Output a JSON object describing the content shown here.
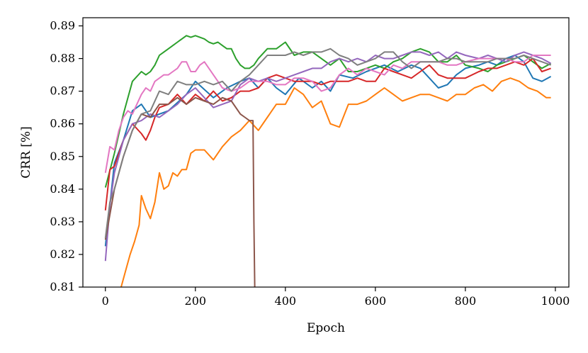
{
  "chart_data": {
    "type": "line",
    "xlabel": "Epoch",
    "ylabel": "CRR [%]",
    "xlim": [
      -50,
      1030
    ],
    "ylim": [
      0.81,
      0.8925
    ],
    "xticks": [
      0,
      200,
      400,
      600,
      800,
      1000
    ],
    "yticks": [
      0.81,
      0.82,
      0.83,
      0.84,
      0.85,
      0.86,
      0.87,
      0.88,
      0.89
    ],
    "ytick_labels": [
      "0.81",
      "0.82",
      "0.83",
      "0.84",
      "0.85",
      "0.86",
      "0.87",
      "0.88",
      "0.89"
    ],
    "xtick_labels": [
      "0",
      "200",
      "400",
      "600",
      "800",
      "1000"
    ],
    "grid": false,
    "legend": "none",
    "series": [
      {
        "color": "#1f77b4",
        "x": [
          0,
          20,
          40,
          60,
          80,
          100,
          140,
          180,
          200,
          240,
          270,
          300,
          320,
          340,
          360,
          380,
          400,
          430,
          460,
          480,
          500,
          520,
          550,
          580,
          600,
          620,
          650,
          680,
          700,
          720,
          740,
          760,
          780,
          800,
          830,
          850,
          870,
          890,
          910,
          930,
          950,
          970,
          990
        ],
        "y": [
          0.8225,
          0.848,
          0.855,
          0.864,
          0.866,
          0.862,
          0.864,
          0.869,
          0.873,
          0.868,
          0.871,
          0.873,
          0.874,
          0.871,
          0.874,
          0.871,
          0.869,
          0.874,
          0.871,
          0.873,
          0.87,
          0.875,
          0.874,
          0.876,
          0.877,
          0.878,
          0.876,
          0.878,
          0.877,
          0.874,
          0.871,
          0.872,
          0.875,
          0.877,
          0.878,
          0.879,
          0.878,
          0.88,
          0.881,
          0.879,
          0.874,
          0.873,
          0.8745
        ]
      },
      {
        "color": "#ff7f0e",
        "x": [
          35,
          45,
          55,
          65,
          75,
          80,
          90,
          100,
          110,
          120,
          130,
          140,
          150,
          160,
          170,
          180,
          190,
          200,
          220,
          240,
          260,
          280,
          300,
          320,
          340,
          360,
          380,
          400,
          420,
          440,
          460,
          480,
          500,
          520,
          540,
          560,
          580,
          600,
          620,
          640,
          660,
          680,
          700,
          720,
          740,
          760,
          780,
          800,
          820,
          840,
          860,
          880,
          900,
          920,
          940,
          960,
          980,
          990
        ],
        "y": [
          0.81,
          0.815,
          0.82,
          0.824,
          0.829,
          0.838,
          0.834,
          0.831,
          0.836,
          0.845,
          0.84,
          0.841,
          0.845,
          0.844,
          0.846,
          0.846,
          0.851,
          0.852,
          0.852,
          0.849,
          0.853,
          0.856,
          0.858,
          0.861,
          0.858,
          0.862,
          0.866,
          0.866,
          0.871,
          0.869,
          0.865,
          0.867,
          0.86,
          0.859,
          0.866,
          0.866,
          0.867,
          0.869,
          0.871,
          0.869,
          0.867,
          0.868,
          0.869,
          0.869,
          0.868,
          0.867,
          0.869,
          0.869,
          0.871,
          0.872,
          0.87,
          0.873,
          0.874,
          0.873,
          0.871,
          0.87,
          0.868,
          0.868
        ]
      },
      {
        "color": "#2ca02c",
        "x": [
          0,
          20,
          40,
          60,
          80,
          90,
          100,
          110,
          120,
          130,
          140,
          150,
          160,
          170,
          180,
          190,
          200,
          210,
          220,
          230,
          240,
          250,
          260,
          270,
          280,
          290,
          300,
          310,
          320,
          330,
          340,
          360,
          380,
          400,
          420,
          440,
          460,
          480,
          500,
          520,
          540,
          560,
          580,
          600,
          620,
          640,
          660,
          680,
          700,
          720,
          740,
          760,
          780,
          800,
          830,
          850,
          870,
          890,
          910,
          930,
          950,
          970,
          990
        ],
        "y": [
          0.8405,
          0.851,
          0.863,
          0.873,
          0.876,
          0.875,
          0.876,
          0.878,
          0.881,
          0.882,
          0.883,
          0.884,
          0.885,
          0.886,
          0.887,
          0.8865,
          0.887,
          0.8865,
          0.886,
          0.885,
          0.8845,
          0.885,
          0.884,
          0.883,
          0.883,
          0.88,
          0.878,
          0.877,
          0.877,
          0.878,
          0.88,
          0.883,
          0.883,
          0.885,
          0.881,
          0.882,
          0.882,
          0.88,
          0.878,
          0.88,
          0.876,
          0.876,
          0.877,
          0.878,
          0.877,
          0.879,
          0.88,
          0.882,
          0.883,
          0.882,
          0.879,
          0.879,
          0.881,
          0.878,
          0.877,
          0.876,
          0.878,
          0.879,
          0.88,
          0.881,
          0.879,
          0.877,
          0.8785
        ]
      },
      {
        "color": "#d62728",
        "x": [
          0,
          10,
          20,
          40,
          60,
          80,
          90,
          100,
          110,
          120,
          140,
          160,
          180,
          200,
          220,
          240,
          260,
          280,
          300,
          320,
          340,
          360,
          380,
          400,
          420,
          440,
          460,
          480,
          500,
          520,
          540,
          560,
          580,
          600,
          620,
          640,
          660,
          680,
          700,
          720,
          740,
          760,
          780,
          800,
          830,
          850,
          870,
          890,
          910,
          930,
          950,
          970,
          990
        ],
        "y": [
          0.8335,
          0.846,
          0.847,
          0.855,
          0.86,
          0.857,
          0.855,
          0.858,
          0.862,
          0.865,
          0.866,
          0.869,
          0.866,
          0.869,
          0.867,
          0.87,
          0.867,
          0.868,
          0.87,
          0.87,
          0.871,
          0.874,
          0.875,
          0.874,
          0.873,
          0.873,
          0.873,
          0.872,
          0.873,
          0.873,
          0.873,
          0.874,
          0.873,
          0.873,
          0.877,
          0.876,
          0.875,
          0.874,
          0.876,
          0.878,
          0.875,
          0.874,
          0.874,
          0.874,
          0.876,
          0.877,
          0.877,
          0.878,
          0.879,
          0.878,
          0.88,
          0.876,
          0.877
        ]
      },
      {
        "color": "#9467bd",
        "x": [
          0,
          10,
          20,
          40,
          60,
          80,
          100,
          120,
          140,
          160,
          180,
          200,
          220,
          240,
          260,
          280,
          300,
          320,
          340,
          360,
          380,
          400,
          420,
          440,
          460,
          480,
          500,
          520,
          540,
          560,
          580,
          600,
          620,
          640,
          660,
          680,
          700,
          720,
          740,
          760,
          780,
          800,
          830,
          850,
          870,
          890,
          910,
          930,
          950,
          970,
          990
        ],
        "y": [
          0.818,
          0.835,
          0.845,
          0.855,
          0.86,
          0.861,
          0.863,
          0.862,
          0.864,
          0.866,
          0.869,
          0.871,
          0.868,
          0.865,
          0.866,
          0.867,
          0.872,
          0.874,
          0.873,
          0.874,
          0.873,
          0.874,
          0.875,
          0.876,
          0.877,
          0.877,
          0.879,
          0.88,
          0.879,
          0.88,
          0.879,
          0.881,
          0.88,
          0.88,
          0.881,
          0.882,
          0.882,
          0.881,
          0.882,
          0.88,
          0.882,
          0.881,
          0.88,
          0.881,
          0.88,
          0.879,
          0.881,
          0.882,
          0.881,
          0.88,
          0.8785
        ]
      },
      {
        "color": "#8c564b",
        "x": [
          0,
          20,
          40,
          60,
          80,
          100,
          120,
          140,
          160,
          180,
          200,
          220,
          240,
          260,
          280,
          300,
          310,
          320,
          328,
          330,
          332
        ],
        "y": [
          0.8245,
          0.84,
          0.85,
          0.858,
          0.863,
          0.862,
          0.866,
          0.866,
          0.868,
          0.866,
          0.868,
          0.867,
          0.866,
          0.868,
          0.867,
          0.863,
          0.862,
          0.861,
          0.861,
          0.83,
          0.81
        ]
      },
      {
        "color": "#e377c2",
        "x": [
          0,
          10,
          20,
          30,
          40,
          50,
          60,
          70,
          80,
          90,
          100,
          110,
          120,
          130,
          140,
          150,
          160,
          170,
          180,
          190,
          200,
          210,
          220,
          230,
          240,
          250,
          260,
          280,
          300,
          320,
          340,
          360,
          380,
          400,
          420,
          440,
          460,
          480,
          500,
          520,
          540,
          560,
          580,
          600,
          620,
          640,
          660,
          680,
          700,
          720,
          740,
          760,
          780,
          800,
          830,
          850,
          870,
          890,
          910,
          930,
          950,
          970,
          990
        ],
        "y": [
          0.845,
          0.853,
          0.852,
          0.858,
          0.862,
          0.864,
          0.863,
          0.866,
          0.869,
          0.871,
          0.87,
          0.873,
          0.874,
          0.875,
          0.875,
          0.876,
          0.877,
          0.879,
          0.879,
          0.876,
          0.876,
          0.878,
          0.879,
          0.877,
          0.875,
          0.873,
          0.871,
          0.87,
          0.871,
          0.873,
          0.873,
          0.873,
          0.872,
          0.872,
          0.874,
          0.874,
          0.873,
          0.87,
          0.871,
          0.875,
          0.877,
          0.875,
          0.877,
          0.876,
          0.875,
          0.878,
          0.877,
          0.879,
          0.879,
          0.879,
          0.879,
          0.878,
          0.878,
          0.879,
          0.88,
          0.88,
          0.88,
          0.88,
          0.879,
          0.879,
          0.881,
          0.881,
          0.881
        ]
      },
      {
        "color": "#7f7f7f",
        "x": [
          0,
          10,
          20,
          30,
          40,
          60,
          80,
          100,
          120,
          140,
          160,
          180,
          200,
          220,
          240,
          260,
          280,
          300,
          320,
          340,
          360,
          380,
          400,
          420,
          440,
          460,
          480,
          500,
          520,
          540,
          560,
          580,
          600,
          620,
          640,
          660,
          680,
          700,
          720,
          740,
          760,
          780,
          800,
          830,
          850,
          870,
          890,
          910,
          930,
          950,
          970,
          990
        ],
        "y": [
          0.825,
          0.836,
          0.84,
          0.845,
          0.85,
          0.858,
          0.863,
          0.864,
          0.87,
          0.869,
          0.873,
          0.872,
          0.872,
          0.873,
          0.872,
          0.873,
          0.87,
          0.873,
          0.875,
          0.878,
          0.881,
          0.881,
          0.881,
          0.882,
          0.881,
          0.882,
          0.882,
          0.883,
          0.881,
          0.88,
          0.878,
          0.879,
          0.88,
          0.882,
          0.882,
          0.879,
          0.877,
          0.879,
          0.879,
          0.879,
          0.88,
          0.88,
          0.879,
          0.879,
          0.879,
          0.88,
          0.88,
          0.88,
          0.881,
          0.88,
          0.879,
          0.878
        ]
      }
    ]
  }
}
